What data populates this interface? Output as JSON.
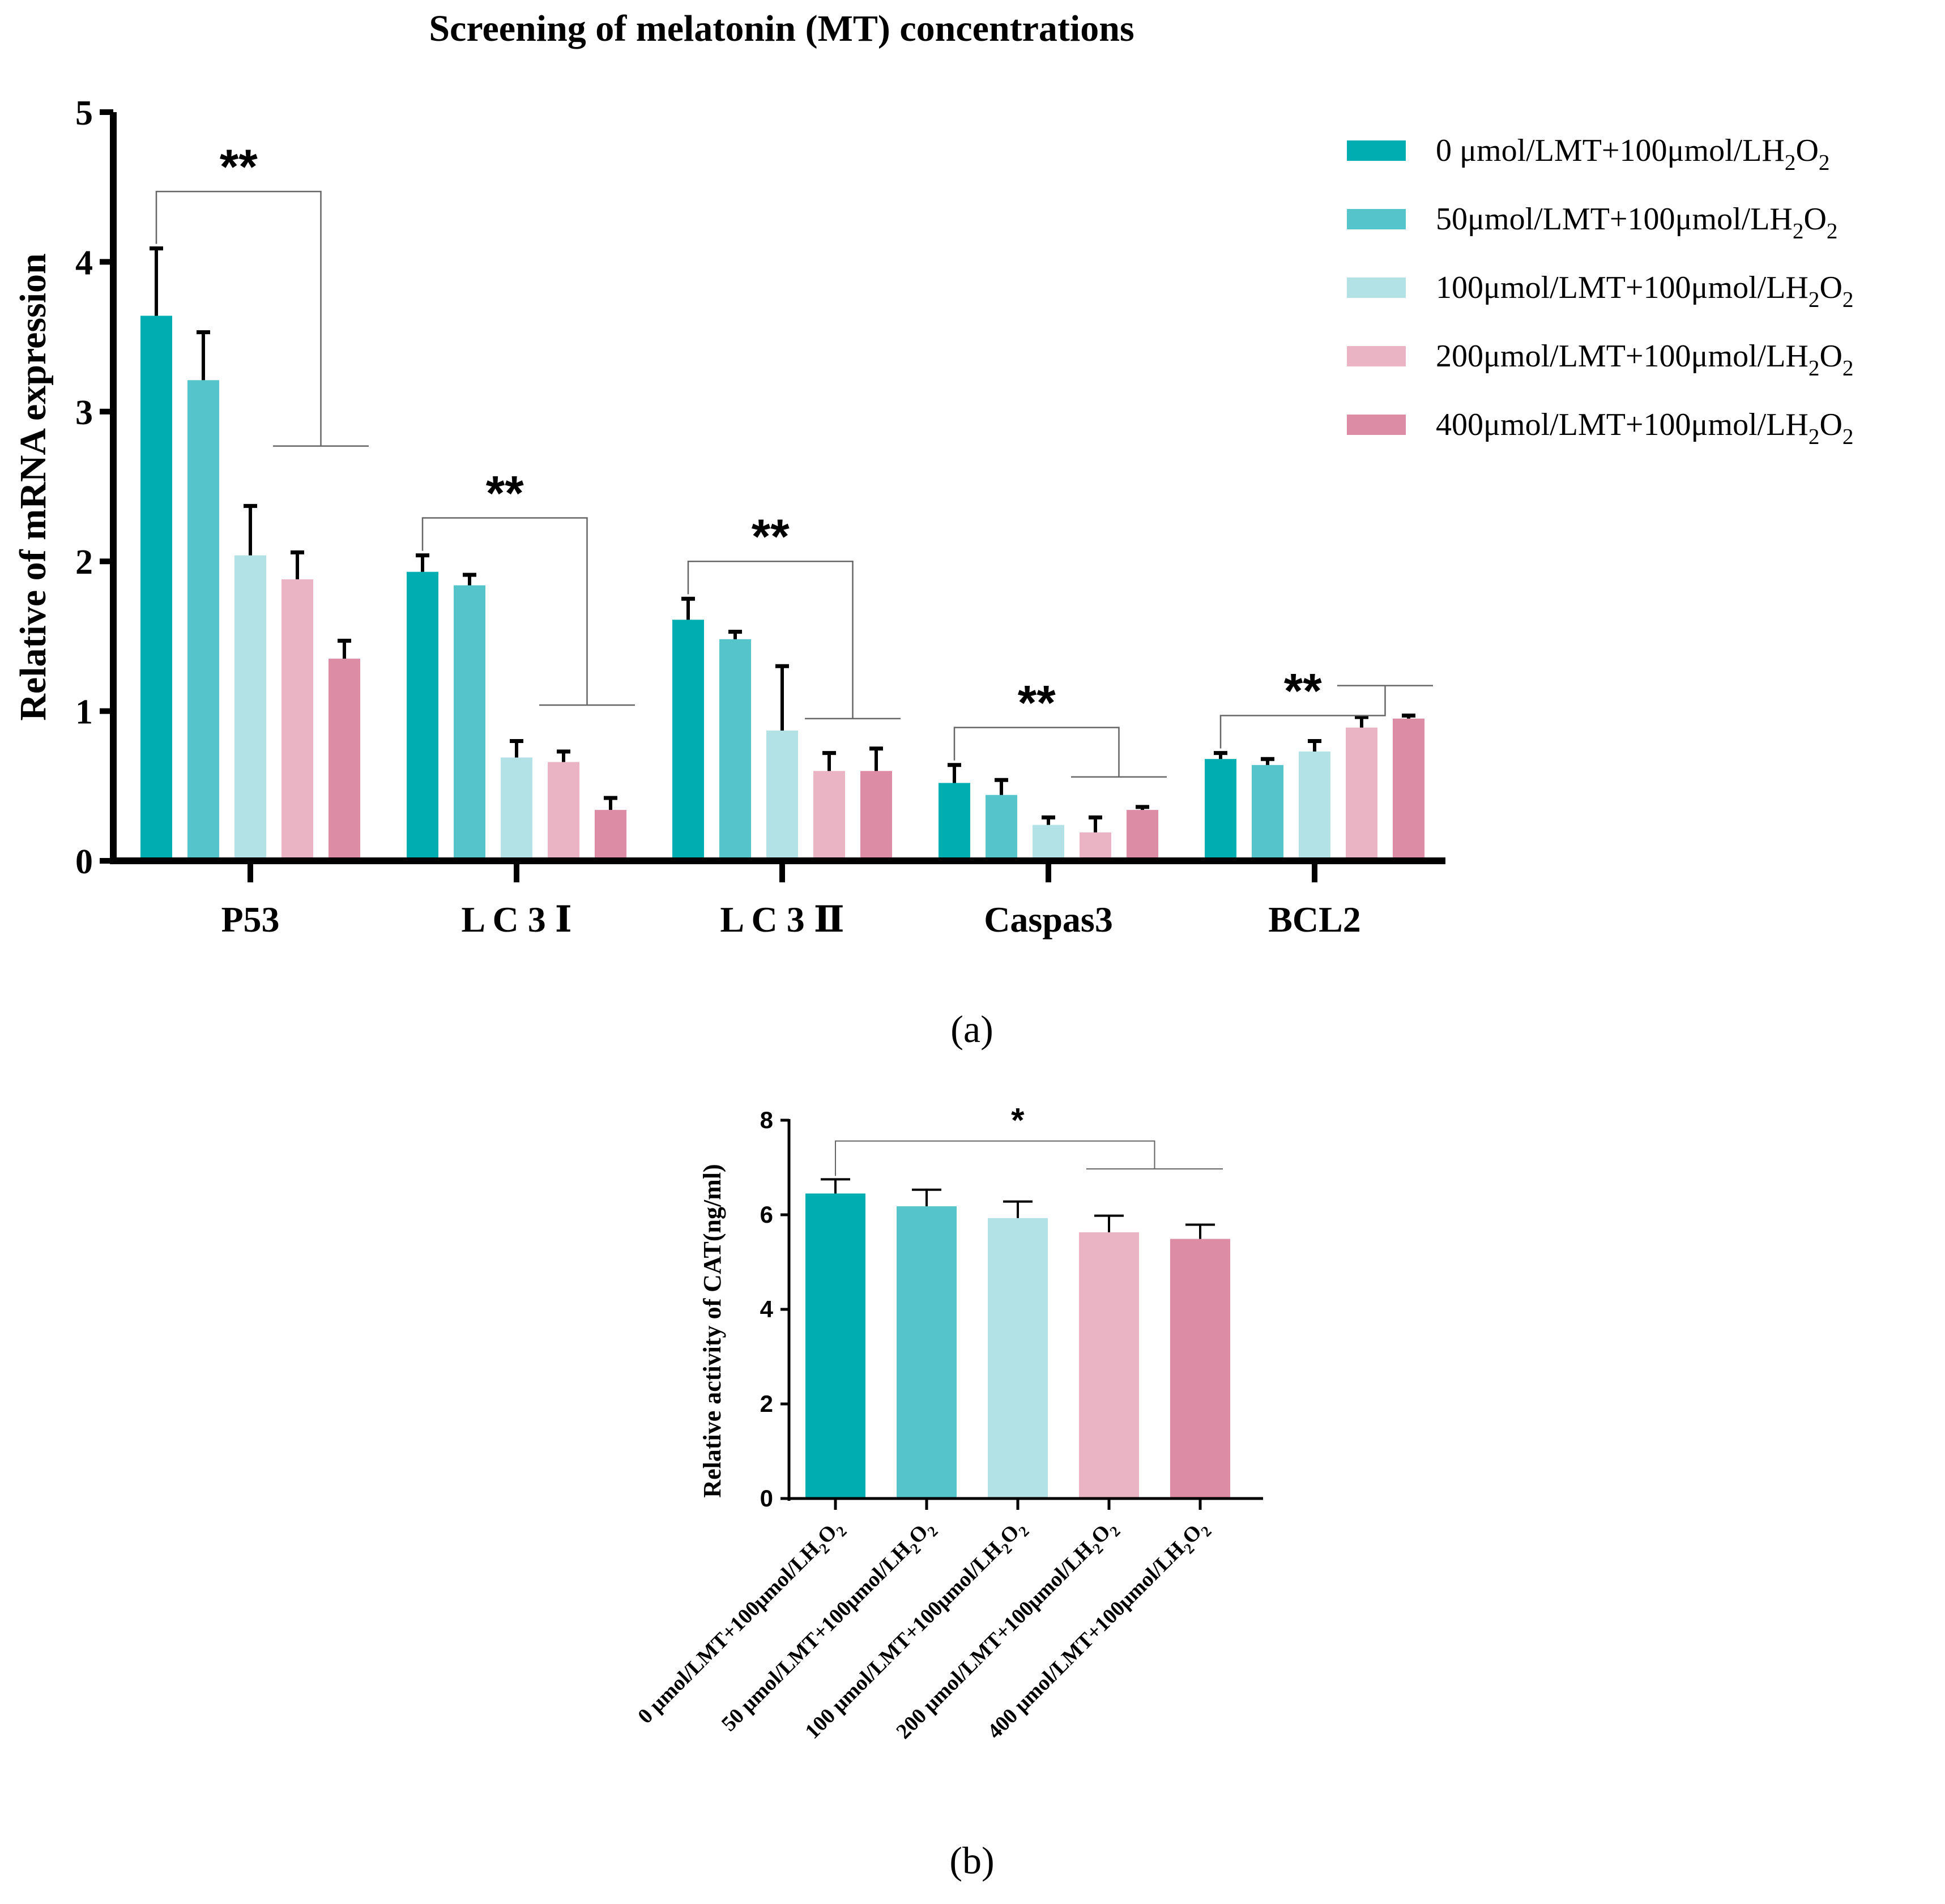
{
  "colors": [
    "#00aeb1",
    "#56c5cb",
    "#b2e2e6",
    "#eab4c4",
    "#dd8ca5"
  ],
  "chart_data": [
    {
      "type": "bar",
      "title": "Screening of melatonin (MT) concentrations",
      "ylabel": "Relative of mRNA expression",
      "xlabel": "",
      "ylim": [
        0,
        5
      ],
      "yticks": [
        0,
        1,
        2,
        3,
        4,
        5
      ],
      "categories": [
        "P53",
        "L C 3 Ⅰ",
        "L C 3 Ⅱ",
        "Caspas3",
        "BCL2"
      ],
      "legend": "top-right",
      "series": [
        {
          "name": "0 μmol/LMT+100μmol/LH2O2",
          "legend_main": "0 μmol/LMT+100μmol/LH",
          "values": [
            3.64,
            1.93,
            1.61,
            0.52,
            0.68
          ],
          "errors": [
            0.45,
            0.11,
            0.14,
            0.12,
            0.04
          ]
        },
        {
          "name": "50μmol/LMT+100μmol/LH2O2",
          "legend_main": "50μmol/LMT+100μmol/LH",
          "values": [
            3.21,
            1.84,
            1.48,
            0.44,
            0.64
          ],
          "errors": [
            0.32,
            0.07,
            0.05,
            0.1,
            0.04
          ]
        },
        {
          "name": "100μmol/LMT+100μmol/LH2O2",
          "legend_main": "100μmol/LMT+100μmol/LH",
          "values": [
            2.04,
            0.69,
            0.87,
            0.24,
            0.73
          ],
          "errors": [
            0.33,
            0.11,
            0.43,
            0.05,
            0.07
          ]
        },
        {
          "name": "200μmol/LMT+100μmol/LH2O2",
          "legend_main": "200μmol/LMT+100μmol/LH",
          "values": [
            1.88,
            0.66,
            0.6,
            0.19,
            0.89
          ],
          "errors": [
            0.18,
            0.07,
            0.12,
            0.1,
            0.07
          ]
        },
        {
          "name": "400μmol/LMT+100μmol/LH2O2",
          "legend_main": "400μmol/LMT+100μmol/LH",
          "values": [
            1.35,
            0.34,
            0.6,
            0.34,
            0.95
          ],
          "errors": [
            0.12,
            0.08,
            0.15,
            0.02,
            0.02
          ]
        }
      ],
      "annotations": [
        "**",
        "**",
        "**",
        "**",
        "**"
      ],
      "panel_label": "(a)"
    },
    {
      "type": "bar",
      "title": "",
      "ylabel": "Relative  activity of CAT(ng/ml)",
      "xlabel": "",
      "ylim": [
        0,
        8
      ],
      "yticks": [
        0,
        2,
        4,
        6,
        8
      ],
      "categories": [
        "0 μmol/LMT+100μmol/LH2O2",
        "50 μmol/LMT+100μmol/LH2O2",
        "100 μmol/LMT+100μmol/LH2O2",
        "200 μmol/LMT+100μmol/LH2O2",
        "400 μmol/LMT+100μmol/LH2O2"
      ],
      "category_main": [
        "0 μmol/LMT+100μmol/LH",
        "50 μmol/LMT+100μmol/LH",
        "100 μmol/LMT+100μmol/LH",
        "200 μmol/LMT+100μmol/LH",
        "400 μmol/LMT+100μmol/LH"
      ],
      "values": [
        6.45,
        6.18,
        5.93,
        5.63,
        5.49
      ],
      "errors": [
        0.3,
        0.35,
        0.35,
        0.35,
        0.3
      ],
      "annotations": [
        "*"
      ],
      "panel_label": "(b)"
    }
  ]
}
